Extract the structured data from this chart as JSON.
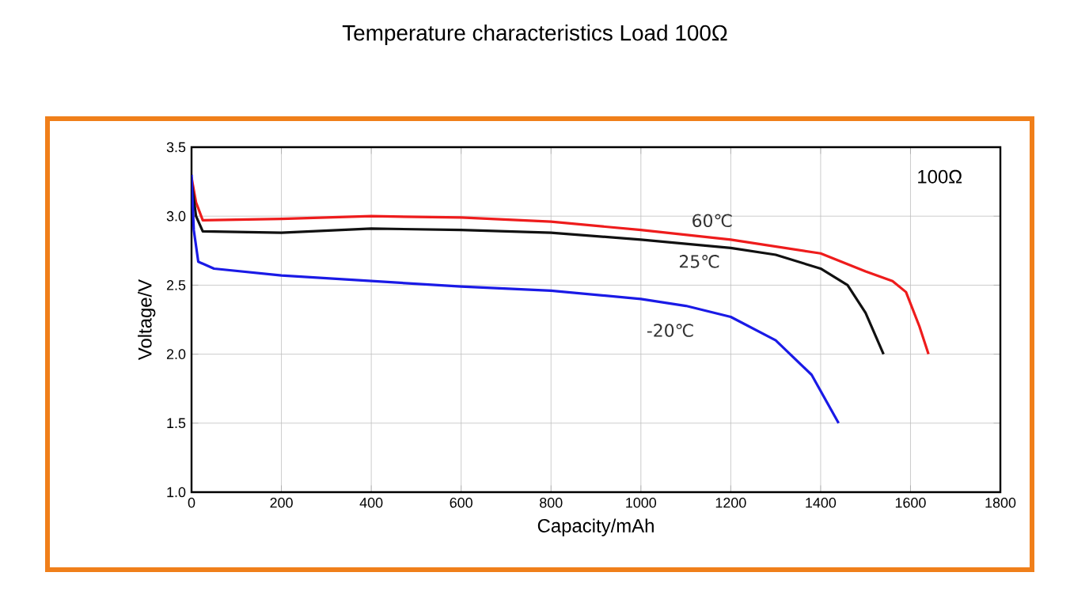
{
  "chart_data": {
    "type": "line",
    "title": "Temperature characteristics Load 100Ω",
    "xlabel": "Capacity/mAh",
    "ylabel": "Voltage/V",
    "annotations": [
      "100Ω"
    ],
    "xlim": [
      0,
      1800
    ],
    "xticks": [
      0,
      200,
      400,
      600,
      800,
      1000,
      1200,
      1400,
      1600,
      1800
    ],
    "ylim": [
      1.0,
      3.5
    ],
    "yticks": [
      {
        "value": 1.0,
        "label": "1.0"
      },
      1.5,
      {
        "value": 2.0,
        "label": "2.0"
      },
      2.5,
      {
        "value": 3.0,
        "label": "3.0"
      },
      3.5
    ],
    "grid": true,
    "legend": false,
    "marker": "none",
    "line_style": "solid",
    "series": [
      {
        "name": "60℃",
        "color": "#ee1c1c",
        "x": [
          0,
          10,
          25,
          200,
          400,
          600,
          800,
          1000,
          1200,
          1400,
          1500,
          1560,
          1590,
          1620,
          1640
        ],
        "values": [
          3.28,
          3.1,
          2.97,
          2.98,
          3.0,
          2.99,
          2.96,
          2.9,
          2.83,
          2.73,
          2.6,
          2.53,
          2.45,
          2.2,
          2.0
        ]
      },
      {
        "name": "25℃",
        "color": "#111111",
        "x": [
          0,
          10,
          25,
          200,
          400,
          600,
          800,
          1000,
          1200,
          1300,
          1400,
          1460,
          1500,
          1540
        ],
        "values": [
          3.25,
          3.0,
          2.89,
          2.88,
          2.91,
          2.9,
          2.88,
          2.83,
          2.77,
          2.72,
          2.62,
          2.5,
          2.3,
          2.0
        ]
      },
      {
        "name": "-20℃",
        "color": "#1a1ae6",
        "x": [
          0,
          5,
          15,
          50,
          200,
          400,
          600,
          800,
          1000,
          1100,
          1200,
          1300,
          1380,
          1440
        ],
        "values": [
          3.3,
          2.9,
          2.67,
          2.62,
          2.57,
          2.53,
          2.49,
          2.46,
          2.4,
          2.35,
          2.27,
          2.1,
          1.85,
          1.5
        ]
      }
    ]
  }
}
